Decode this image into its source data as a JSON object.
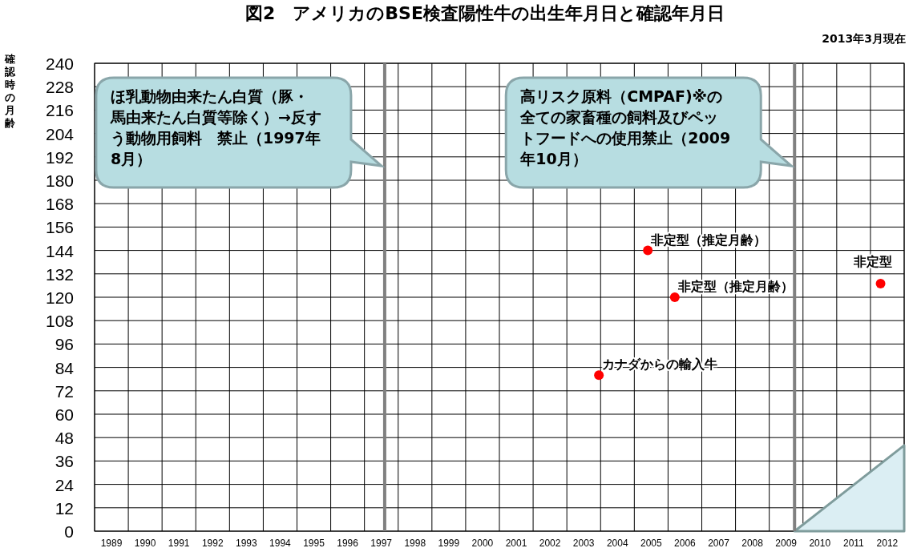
{
  "chart_data": {
    "type": "scatter",
    "title": "図2　アメリカのBSE検査陽性牛の出生年月日と確認年月日",
    "subtitle": "2013年3月現在",
    "ylabel": "確認時の月齢",
    "xlim": [
      1989,
      2013
    ],
    "ylim": [
      0,
      240
    ],
    "yticks": [
      0,
      12,
      24,
      36,
      48,
      60,
      72,
      84,
      96,
      108,
      120,
      132,
      144,
      156,
      168,
      180,
      192,
      204,
      216,
      228,
      240
    ],
    "xticks": [
      {
        "value": 1989,
        "label": null
      },
      {
        "value": 1990,
        "label": null
      },
      {
        "value": 1991,
        "label": null
      },
      {
        "value": 1992,
        "label": null
      },
      {
        "value": 1993,
        "label": null
      },
      {
        "value": 1994,
        "label": null
      },
      {
        "value": 1995,
        "label": null
      },
      {
        "value": 1996,
        "label": null
      },
      {
        "value": 1997,
        "label": null
      },
      {
        "value": 1998,
        "label": null
      },
      {
        "value": 1999,
        "label": null
      },
      {
        "value": 2000,
        "label": null
      },
      {
        "value": 2001,
        "label": null
      },
      {
        "value": 2002,
        "label": null
      },
      {
        "value": 2003,
        "label": null
      },
      {
        "value": 2004,
        "label": null
      },
      {
        "value": 2005,
        "label": null
      },
      {
        "value": 2006,
        "label": null
      },
      {
        "value": 2007,
        "label": null
      },
      {
        "value": 2008,
        "label": null
      },
      {
        "value": 2009,
        "label": null
      },
      {
        "value": 2010,
        "label": null
      },
      {
        "value": 2011,
        "label": null
      },
      {
        "value": 2012,
        "label": null
      },
      {
        "value": 2013,
        "label": null
      },
      {
        "value": 1989.5,
        "label": "1989"
      },
      {
        "value": 1990.5,
        "label": "1990"
      },
      {
        "value": 1991.5,
        "label": "1991"
      },
      {
        "value": 1992.5,
        "label": "1992"
      },
      {
        "value": 1993.5,
        "label": "1993"
      },
      {
        "value": 1994.5,
        "label": "1994"
      },
      {
        "value": 1995.5,
        "label": "1995"
      },
      {
        "value": 1996.5,
        "label": "1996"
      },
      {
        "value": 1997.5,
        "label": "1997"
      },
      {
        "value": 1998.5,
        "label": "1998"
      },
      {
        "value": 1999.5,
        "label": "1999"
      },
      {
        "value": 2000.5,
        "label": "2000"
      },
      {
        "value": 2001.5,
        "label": "2001"
      },
      {
        "value": 2002.5,
        "label": "2002"
      },
      {
        "value": 2003.5,
        "label": "2003"
      },
      {
        "value": 2004.5,
        "label": "2004"
      },
      {
        "value": 2005.5,
        "label": "2005"
      },
      {
        "value": 2006.5,
        "label": "2006"
      },
      {
        "value": 2007.5,
        "label": "2007"
      },
      {
        "value": 2008.5,
        "label": "2008"
      },
      {
        "value": 2009.5,
        "label": "2009"
      },
      {
        "value": 2010.5,
        "label": "2010"
      },
      {
        "value": 2011.5,
        "label": "2011"
      },
      {
        "value": 2012.5,
        "label": "2012"
      }
    ],
    "grid": true,
    "series": [
      {
        "marker": "circle",
        "color": "#ff0000",
        "x": [
          2003.95,
          2005.4,
          2006.2,
          2012.3
        ],
        "values": [
          80,
          144,
          120,
          127
        ]
      },
      {
        "type": "area",
        "color": "#dbeef3",
        "x": [
          2009.75,
          2013
        ],
        "values": [
          0,
          44
        ]
      }
    ],
    "ref_lines": [
      {
        "axis": "x",
        "value": 1997.6,
        "color": "#808080"
      },
      {
        "axis": "x",
        "value": 2009.75,
        "color": "#808080"
      }
    ],
    "annotations": [
      "ほ乳動物由来たん白質（豚・馬由来たん白質等除く）→反すう動物用飼料　禁止（1997年8月）",
      "高リスク原料（CMPAF)※の全ての家畜種の飼料及びペットフードへの使用禁止（2009年10月）",
      {
        "text": "カナダからの輸入牛",
        "x": 2003.95,
        "y": 80
      },
      {
        "text": "非定型（推定月齢）",
        "x": 2005.4,
        "y": 144
      },
      {
        "text": "非定型（推定月齢）",
        "x": 2006.2,
        "y": 120
      },
      {
        "text": "非定型",
        "x": 2012.3,
        "y": 127
      }
    ]
  }
}
